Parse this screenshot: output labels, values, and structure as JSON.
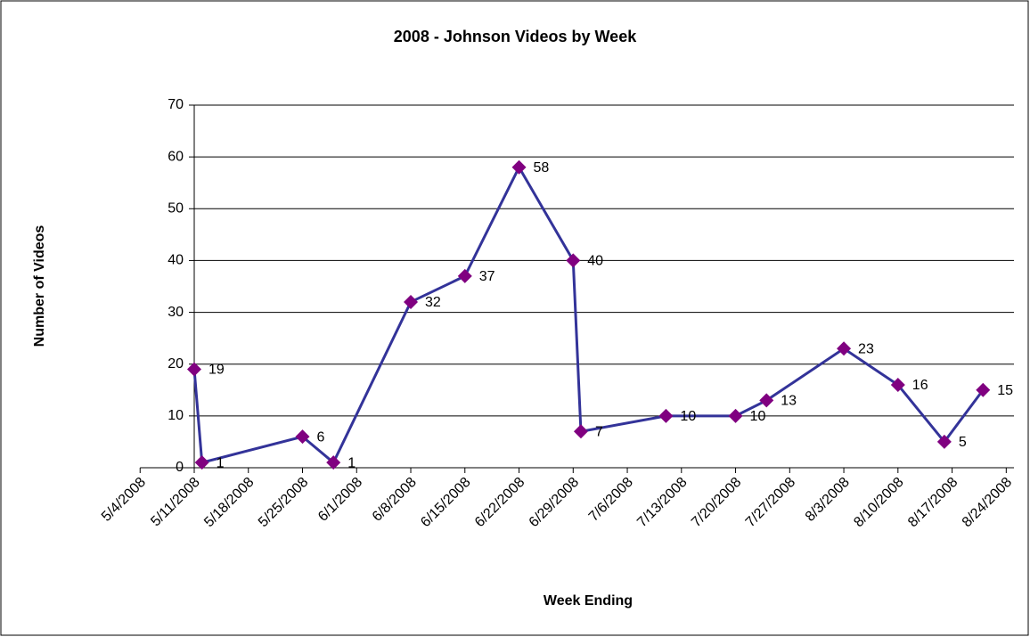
{
  "chart_data": {
    "type": "line",
    "title": "2008 - Johnson Videos by Week",
    "x_label": "Week Ending",
    "y_label": "Number of Videos",
    "x": [
      "5/11/2008",
      "5/12/2008",
      "5/25/2008",
      "5/29/2008",
      "6/8/2008",
      "6/15/2008",
      "6/22/2008",
      "6/29/2008",
      "6/30/2008",
      "7/11/2008",
      "7/20/2008",
      "7/24/2008",
      "8/3/2008",
      "8/10/2008",
      "8/16/2008",
      "8/21/2008"
    ],
    "series": [
      {
        "name": "Videos",
        "color": "#333399",
        "marker_color": "#800080",
        "values": [
          19,
          1,
          6,
          1,
          32,
          37,
          58,
          40,
          7,
          10,
          10,
          13,
          23,
          16,
          5,
          15
        ]
      }
    ],
    "xlim": [
      "5/11/2008",
      "8/25/2008"
    ],
    "xticks": [
      "5/4/2008",
      "5/11/2008",
      "5/18/2008",
      "5/25/2008",
      "6/1/2008",
      "6/8/2008",
      "6/15/2008",
      "6/22/2008",
      "6/29/2008",
      "7/6/2008",
      "7/13/2008",
      "7/20/2008",
      "7/27/2008",
      "8/3/2008",
      "8/10/2008",
      "8/17/2008",
      "8/24/2008"
    ],
    "ylim": [
      0,
      70
    ],
    "yticks": [
      0,
      10,
      20,
      30,
      40,
      50,
      60,
      70
    ],
    "grid": true,
    "data_labels": true
  }
}
